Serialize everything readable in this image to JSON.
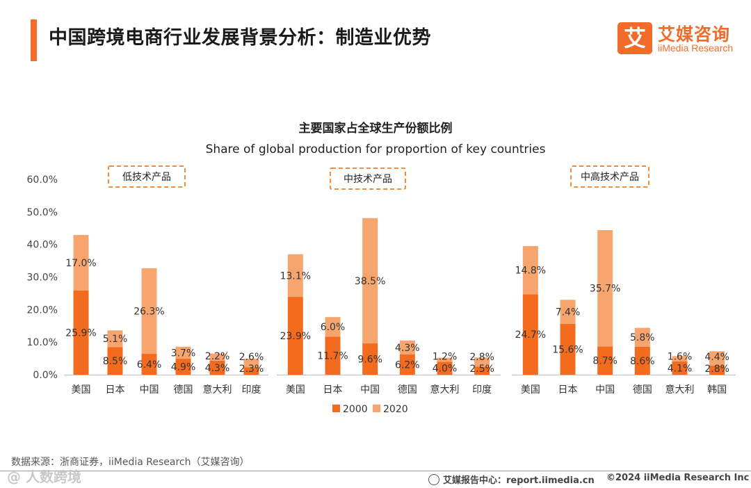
{
  "header": {
    "title": "中国跨境电商行业发展背景分析：制造业优势",
    "logo_mark": "艾",
    "logo_cn": "艾媒咨询",
    "logo_en": "iiMedia Research"
  },
  "colors": {
    "s2000": "#f26b1f",
    "s2020": "#f7a56e",
    "accent": "#f26b2b",
    "dash": "#f28c3a"
  },
  "chart_data": {
    "type": "bar",
    "stacked": true,
    "title": "主要国家占全球生产份额比例",
    "subtitle": "Share of global production for proportion of key countries",
    "ylim": [
      0,
      60
    ],
    "yticks": [
      "0.0%",
      "10.0%",
      "20.0%",
      "30.0%",
      "40.0%",
      "50.0%",
      "60.0%"
    ],
    "legend": {
      "position": "bottom",
      "entries": [
        "2000",
        "2020"
      ]
    },
    "groups": [
      {
        "label": "低技术产品",
        "categories": [
          "美国",
          "日本",
          "中国",
          "德国",
          "意大利",
          "印度"
        ],
        "series": [
          {
            "name": "2000",
            "values": [
              25.9,
              8.5,
              6.4,
              4.9,
              4.3,
              2.3
            ],
            "labels": [
              "25.9%",
              "8.5%",
              "6.4%",
              "4.9%",
              "4.3%",
              "2.3%"
            ]
          },
          {
            "name": "2020",
            "values": [
              17.0,
              5.1,
              26.3,
              3.7,
              2.2,
              2.6
            ],
            "labels": [
              "17.0%",
              "5.1%",
              "26.3%",
              "3.7%",
              "2.2%",
              "2.6%"
            ]
          }
        ]
      },
      {
        "label": "中技术产品",
        "categories": [
          "美国",
          "日本",
          "中国",
          "德国",
          "意大利",
          "印度"
        ],
        "series": [
          {
            "name": "2000",
            "values": [
              23.9,
              11.7,
              9.6,
              6.2,
              4.0,
              2.5
            ],
            "labels": [
              "23.9%",
              "11.7%",
              "9.6%",
              "6.2%",
              "4.0%",
              "2.5%"
            ]
          },
          {
            "name": "2020",
            "values": [
              13.1,
              6.0,
              38.5,
              4.3,
              1.2,
              2.8
            ],
            "labels": [
              "13.1%",
              "6.0%",
              "38.5%",
              "4.3%",
              "1.2%",
              "2.8%"
            ]
          }
        ]
      },
      {
        "label": "中高技术产品",
        "categories": [
          "美国",
          "日本",
          "中国",
          "德国",
          "意大利",
          "韩国"
        ],
        "series": [
          {
            "name": "2000",
            "values": [
              24.7,
              15.6,
              8.7,
              8.6,
              4.1,
              2.8
            ],
            "labels": [
              "24.7%",
              "15.6%",
              "8.7%",
              "8.6%",
              "4.1%",
              "2.8%"
            ]
          },
          {
            "name": "2020",
            "values": [
              14.8,
              7.4,
              35.7,
              5.8,
              1.6,
              4.4
            ],
            "labels": [
              "14.8%",
              "7.4%",
              "35.7%",
              "5.8%",
              "1.6%",
              "4.4%"
            ]
          }
        ]
      }
    ]
  },
  "footer": {
    "source": "数据来源：浙商证券，iiMedia Research（艾媒咨询）",
    "watermark": "@ 人数跨境",
    "website": "艾媒报告中心：report.iimedia.cn",
    "copyright": "©2024  iiMedia Research  Inc"
  }
}
